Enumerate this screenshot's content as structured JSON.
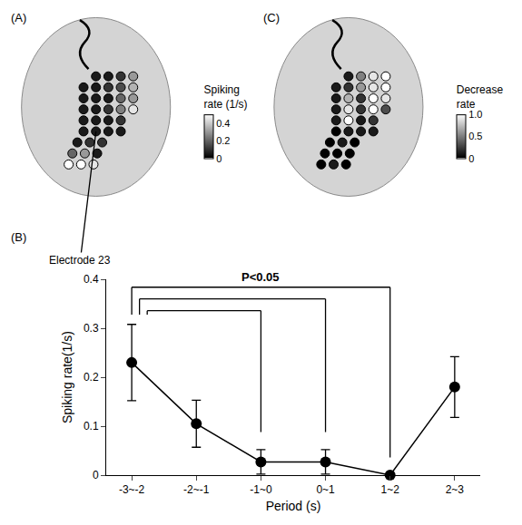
{
  "chart_data": [
    {
      "type": "electrode_map",
      "panel": "(A)",
      "colorbar_title": "Spiking rate (1/s)",
      "color_range": [
        0,
        0.5
      ],
      "color_ticks": [
        0,
        0.2,
        0.4
      ],
      "values": [
        [
          null,
          0.05,
          0.05,
          0.1,
          0.3
        ],
        [
          0.05,
          0.05,
          0.1,
          0.15,
          0.35
        ],
        [
          0.05,
          0.05,
          0.05,
          0.2,
          0.3
        ],
        [
          0.05,
          0.05,
          0.1,
          0.25,
          0.45
        ],
        [
          0.05,
          0.05,
          0.05,
          0.1,
          null
        ],
        [
          0.05,
          0.05,
          0.05,
          0.05,
          null
        ],
        [
          0.05,
          0.1,
          0.1,
          null,
          null
        ],
        [
          0.2,
          0.3,
          0.05,
          null,
          null
        ],
        [
          0.5,
          0.5,
          0.45,
          null,
          null
        ]
      ],
      "electrode_label": {
        "text": "Electrode 23",
        "row": 5,
        "col": 1
      }
    },
    {
      "type": "electrode_map",
      "panel": "(C)",
      "colorbar_title": "Decrease rate",
      "color_range": [
        0,
        1
      ],
      "color_ticks": [
        0,
        0.5,
        {
          "value": 1,
          "label": "1.0"
        }
      ],
      "values": [
        [
          null,
          0.1,
          0.5,
          0.9,
          1.0
        ],
        [
          0.1,
          0.2,
          0.6,
          0.9,
          1.0
        ],
        [
          0.1,
          0.7,
          0.2,
          1.0,
          0.9
        ],
        [
          0.1,
          0.9,
          0.2,
          1.0,
          0.3
        ],
        [
          0.1,
          1.0,
          0.1,
          0.2,
          null
        ],
        [
          0.0,
          0.1,
          0.1,
          0.1,
          null
        ],
        [
          0.0,
          0.1,
          0.0,
          null,
          null
        ],
        [
          0.0,
          0.0,
          0.0,
          null,
          null
        ],
        [
          0.0,
          0.1,
          0.0,
          null,
          null
        ]
      ]
    },
    {
      "type": "line",
      "panel": "(B)",
      "categories": [
        "-3~-2",
        "-2~-1",
        "-1~0",
        "0~1",
        "1~2",
        "2~3"
      ],
      "values": [
        0.23,
        0.105,
        0.027,
        0.027,
        0.0,
        0.18
      ],
      "errors": [
        0.078,
        0.048,
        0.025,
        0.025,
        0.0,
        0.062
      ],
      "x_label": "Period (s)",
      "y_label": "Spiking rate(1/s)",
      "ylim": [
        0,
        0.4
      ],
      "yticks": [
        0,
        0.1,
        0.2,
        0.3,
        0.4
      ],
      "color": "#000000",
      "marker": "circle",
      "grid": false,
      "comparisons": {
        "label": "P<0.05",
        "pairs": [
          [
            0,
            2
          ],
          [
            0,
            3
          ],
          [
            0,
            4
          ]
        ]
      }
    }
  ]
}
